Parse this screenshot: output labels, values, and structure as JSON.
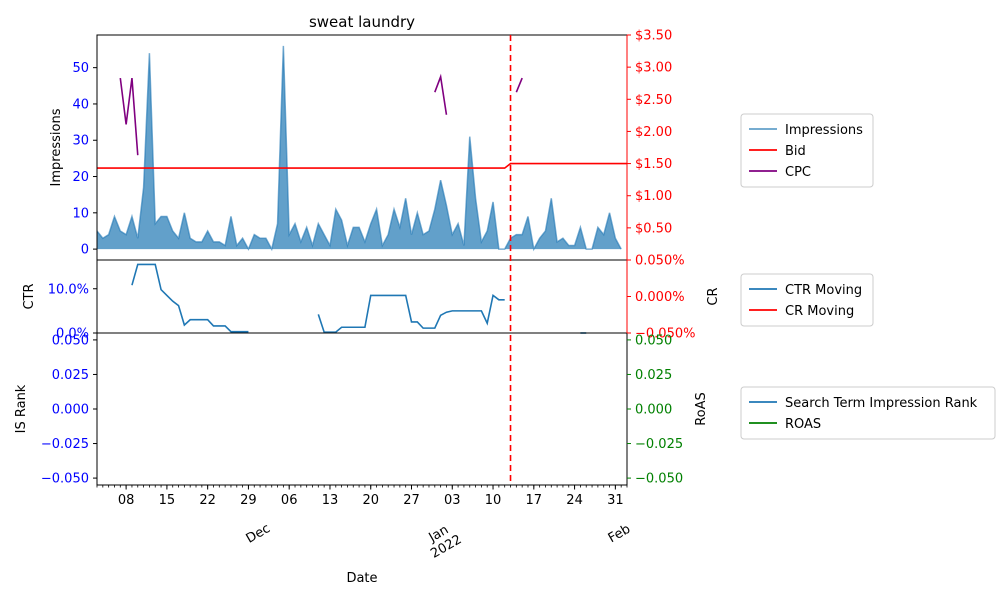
{
  "colors": {
    "impressions": "#1f77b4",
    "bid": "#ff0000",
    "cpc": "#800080",
    "ctr": "#1f77b4",
    "cr": "#ff0000",
    "rank": "#1f77b4",
    "roas": "#008000",
    "left_ticks": "#0000ff",
    "right_ticks_top": "#ff0000",
    "right_ticks_mid": "#ff0000",
    "right_ticks_bottom": "#008000"
  },
  "chart_data": {
    "type": "area",
    "title": "sweat laundry",
    "xlabel": "Date",
    "x_range_days": [
      "2021-11-03",
      "2022-02-02"
    ],
    "event_line_date": "2022-01-13",
    "x_major_ticks": [
      {
        "date": "2021-11-08",
        "label": "08"
      },
      {
        "date": "2021-11-15",
        "label": "15"
      },
      {
        "date": "2021-11-22",
        "label": "22"
      },
      {
        "date": "2021-11-29",
        "label": "29"
      },
      {
        "date": "2021-12-06",
        "label": "06"
      },
      {
        "date": "2021-12-13",
        "label": "13"
      },
      {
        "date": "2021-12-20",
        "label": "20"
      },
      {
        "date": "2021-12-27",
        "label": "27"
      },
      {
        "date": "2022-01-03",
        "label": "03"
      },
      {
        "date": "2022-01-10",
        "label": "10"
      },
      {
        "date": "2022-01-17",
        "label": "17"
      },
      {
        "date": "2022-01-24",
        "label": "24"
      },
      {
        "date": "2022-01-31",
        "label": "31"
      }
    ],
    "x_month_labels": [
      {
        "date": "2021-12-01",
        "label": "Dec"
      },
      {
        "date": "2022-01-01",
        "label": "Jan\n2022"
      },
      {
        "date": "2022-02-01",
        "label": "Feb"
      }
    ],
    "panels": [
      {
        "id": "top",
        "ylabel": "Impressions",
        "ylim": [
          -3,
          59
        ],
        "yticks": [
          0,
          10,
          20,
          30,
          40,
          50
        ],
        "ytick_labels": [
          "0",
          "10",
          "20",
          "30",
          "40",
          "50"
        ],
        "y2lim": [
          0,
          3.5
        ],
        "y2ticks": [
          0.5,
          1.0,
          1.5,
          2.0,
          2.5,
          3.0,
          3.5
        ],
        "y2tick_labels": [
          "$0.50",
          "$1.00",
          "$1.50",
          "$2.00",
          "$2.50",
          "$3.00",
          "$3.50"
        ],
        "legend": [
          "Impressions",
          "Bid",
          "CPC"
        ],
        "legend_position": "right, outside",
        "series": {
          "impressions": [
            5,
            3,
            4,
            9,
            5,
            4,
            9,
            3,
            17,
            54,
            7,
            9,
            9,
            5,
            3,
            10,
            3,
            2,
            2,
            5,
            2,
            2,
            1,
            9,
            1,
            3,
            0,
            4,
            3,
            3,
            0,
            7,
            56,
            4,
            7,
            2,
            6,
            1,
            7,
            4,
            1,
            11,
            8,
            1,
            6,
            6,
            2,
            7,
            11,
            1,
            4,
            11,
            6,
            14,
            4,
            10,
            4,
            5,
            11,
            19,
            12,
            4,
            7,
            1,
            31,
            14,
            2,
            5,
            13,
            0,
            0,
            3,
            4,
            4,
            9,
            0,
            3,
            5,
            14,
            2,
            3,
            1,
            1,
            6,
            0,
            0,
            6,
            4,
            10,
            3,
            0
          ],
          "bid_segments": [
            {
              "from_day": 0,
              "to_day": 70,
              "value": 1.43
            },
            {
              "from_day": 70,
              "to_day": 71,
              "value": 1.5,
              "step": true
            },
            {
              "from_day": 71,
              "to_day": 91,
              "value": 1.5
            }
          ],
          "cpc_segments": [
            [
              [
                4,
                2.83
              ],
              [
                5,
                2.11
              ],
              [
                6,
                2.83
              ],
              [
                7,
                1.63
              ]
            ],
            [
              [
                58,
                2.61
              ],
              [
                59,
                2.85
              ],
              [
                60,
                2.26
              ]
            ],
            [
              [
                72,
                2.61
              ],
              [
                73,
                2.83
              ]
            ]
          ]
        }
      },
      {
        "id": "middle",
        "ylabel": "CTR",
        "y2label": "CR",
        "ylim": [
          0,
          0.165
        ],
        "yticks": [
          0,
          0.1
        ],
        "ytick_labels": [
          "0.0%",
          "10.0%"
        ],
        "y2lim": [
          -0.05,
          0.05
        ],
        "y2ticks": [
          -0.05,
          0,
          0.05
        ],
        "y2tick_labels": [
          "−0.050%",
          "0.000%",
          "0.050%"
        ],
        "legend": [
          "CTR Moving",
          "CR Moving"
        ],
        "series": {
          "ctr_segments": [
            [
              [
                6,
                0.108
              ],
              [
                7,
                0.155
              ],
              [
                8,
                0.155
              ],
              [
                9,
                0.155
              ],
              [
                10,
                0.155
              ],
              [
                11,
                0.098
              ],
              [
                12,
                0.085
              ],
              [
                13,
                0.072
              ],
              [
                14,
                0.062
              ],
              [
                15,
                0.018
              ],
              [
                16,
                0.03
              ],
              [
                17,
                0.03
              ],
              [
                18,
                0.03
              ],
              [
                19,
                0.03
              ],
              [
                20,
                0.016
              ],
              [
                21,
                0.016
              ],
              [
                22,
                0.016
              ],
              [
                23,
                0.003
              ],
              [
                24,
                0.003
              ],
              [
                25,
                0.003
              ],
              [
                26,
                0.003
              ]
            ],
            [
              [
                38,
                0.042
              ],
              [
                39,
                0.002
              ],
              [
                40,
                0.002
              ],
              [
                41,
                0.002
              ],
              [
                42,
                0.013
              ],
              [
                43,
                0.013
              ],
              [
                44,
                0.013
              ],
              [
                45,
                0.013
              ],
              [
                46,
                0.013
              ],
              [
                47,
                0.085
              ],
              [
                48,
                0.085
              ],
              [
                49,
                0.085
              ],
              [
                50,
                0.085
              ],
              [
                51,
                0.085
              ],
              [
                52,
                0.085
              ],
              [
                53,
                0.085
              ],
              [
                54,
                0.025
              ],
              [
                55,
                0.025
              ],
              [
                56,
                0.011
              ],
              [
                57,
                0.011
              ],
              [
                58,
                0.011
              ],
              [
                59,
                0.04
              ],
              [
                60,
                0.047
              ],
              [
                61,
                0.05
              ],
              [
                62,
                0.05
              ],
              [
                63,
                0.05
              ],
              [
                64,
                0.05
              ],
              [
                65,
                0.05
              ],
              [
                66,
                0.05
              ],
              [
                67,
                0.022
              ],
              [
                68,
                0.085
              ],
              [
                69,
                0.075
              ],
              [
                70,
                0.075
              ]
            ],
            [
              [
                83,
                0.0
              ],
              [
                84,
                0.0
              ]
            ]
          ]
        }
      },
      {
        "id": "bottom",
        "ylabel": "IS Rank",
        "y2label": "RoAS",
        "ylim": [
          -0.055,
          0.055
        ],
        "yticks": [
          -0.05,
          -0.025,
          0.0,
          0.025,
          0.05
        ],
        "ytick_labels": [
          "−0.050",
          "−0.025",
          "0.000",
          "0.025",
          "0.050"
        ],
        "y2ticks": [
          -0.05,
          -0.025,
          0.0,
          0.025,
          0.05
        ],
        "y2tick_labels": [
          "−0.050",
          "−0.025",
          "0.000",
          "0.025",
          "0.050"
        ],
        "legend": [
          "Search Term Impression Rank",
          "ROAS"
        ],
        "series": {}
      }
    ]
  }
}
